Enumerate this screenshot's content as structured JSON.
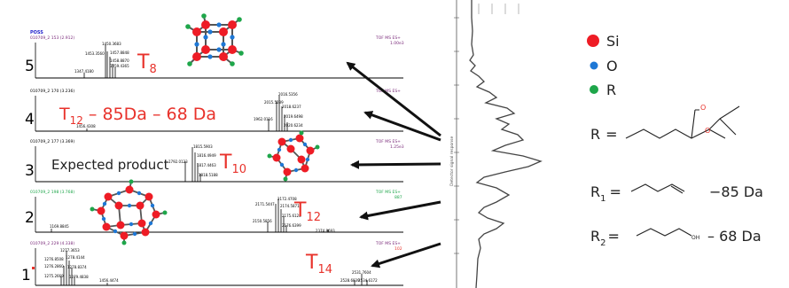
{
  "header": {
    "poss": "POSS"
  },
  "spectra": [
    {
      "rank": "5",
      "run": "010709_2 153 (2.912)",
      "tof": "TOF MS ES+",
      "intensity": "1.00e3",
      "peaks": [
        "1347.4180",
        "1450.3683",
        "1453.3560",
        "1457.8848",
        "1458.8870",
        "1459.4365"
      ],
      "label_main": "T",
      "label_sub": "8",
      "label_rest": ""
    },
    {
      "rank": "4",
      "run": "010709_2 170 (3.236)",
      "tof": "TOF MS ES+",
      "intensity": "",
      "peaks": [
        "1456.4308",
        "1962.0116",
        "2015.5289",
        "2016.5356",
        "2018.6237",
        "2019.6498",
        "2020.6234"
      ],
      "label_main": "T",
      "label_sub": "12",
      "label_rest": " – 85Da – 68 Da"
    },
    {
      "rank": "3",
      "run": "010709_2 177 (3.369)",
      "tof": "TOF MS ES+",
      "intensity": "1.25e3",
      "peaks": [
        "1792.0123",
        "1815.5903",
        "1816.4949",
        "1817.4463",
        "1818.5188"
      ],
      "label_main": "T",
      "label_sub": "10",
      "label_rest": "",
      "prefix": "Expected product"
    },
    {
      "rank": "2",
      "run": "010709_2 198 (3.768)",
      "tof": "TOF MS ES+",
      "intensity": "887",
      "peaks": [
        "1169.8845",
        "2150.5856",
        "2171.5447",
        "2172.4708",
        "2174.5871",
        "2175.6128",
        "2176.6399",
        "2374.8693"
      ],
      "label_main": "T",
      "label_sub": "12",
      "label_rest": ""
    },
    {
      "rank": "1",
      "run": "010709_2 229 (4.338)",
      "tof": "TOF MS ES+",
      "intensity": "102",
      "peaks": [
        "1275.2669",
        "1276.2860",
        "1276.8508",
        "1277.3653",
        "1278.4144",
        "1278.8374",
        "1279.4838",
        "1456.4474",
        "2528.6839",
        "2531.7604",
        "2534.6172"
      ],
      "label_main": "T",
      "label_sub": "14",
      "label_rest": ""
    }
  ],
  "legend": {
    "si": "Si",
    "o": "O",
    "r": "R"
  },
  "colors": {
    "si": "#ee1c25",
    "o": "#1e78d6",
    "r": "#1ea64a",
    "red_label": "#e8322b",
    "arrow": "#111111"
  },
  "substituents": [
    {
      "label_main": "R",
      "label_sub": "",
      "eq": "=",
      "note": ""
    },
    {
      "label_main": "R",
      "label_sub": "1",
      "eq": "=",
      "note": "−85 Da"
    },
    {
      "label_main": "R",
      "label_sub": "2",
      "eq": "=",
      "note": "– 68 Da"
    }
  ],
  "r2_oh": "OH",
  "chromatogram": {
    "ylabel": "Detector signal response"
  }
}
